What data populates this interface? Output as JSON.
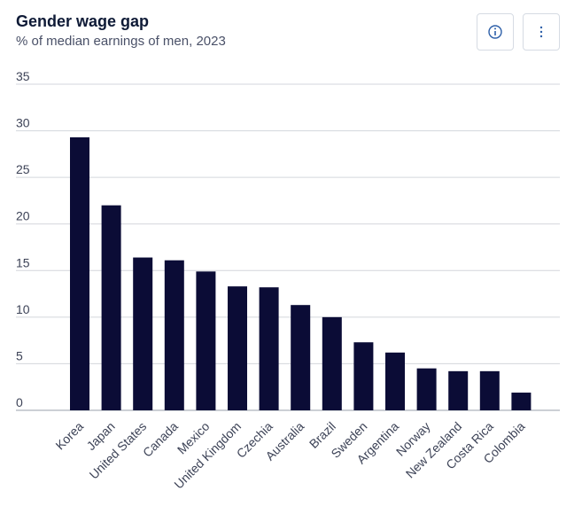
{
  "header": {
    "title": "Gender wage gap",
    "subtitle": "% of median earnings of men, 2023",
    "info_icon": "info-icon",
    "menu_icon": "vertical-ellipsis-icon"
  },
  "colors": {
    "bar": "#0b0c36",
    "grid": "#d3d6dc",
    "axis": "#9aa0ab",
    "accent": "#2d5fa8"
  },
  "chart_data": {
    "type": "bar",
    "title": "Gender wage gap",
    "subtitle": "% of median earnings of men, 2023",
    "categories": [
      "Korea",
      "Japan",
      "United States",
      "Canada",
      "Mexico",
      "United Kingdom",
      "Czechia",
      "Australia",
      "Brazil",
      "Sweden",
      "Argentina",
      "Norway",
      "New Zealand",
      "Costa Rica",
      "Colombia"
    ],
    "values": [
      29.3,
      22.0,
      16.4,
      16.1,
      14.9,
      13.3,
      13.2,
      11.3,
      10.0,
      7.3,
      6.2,
      4.5,
      4.2,
      4.2,
      1.9
    ],
    "ylim": [
      0,
      35
    ],
    "yticks": [
      0,
      5,
      10,
      15,
      20,
      25,
      30,
      35
    ],
    "grid": true,
    "legend": "none"
  }
}
